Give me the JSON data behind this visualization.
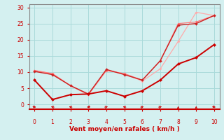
{
  "xlabel": "Vent moyen/en rafales ( km/h )",
  "x": [
    0,
    1,
    2,
    3,
    4,
    5,
    6,
    7,
    8,
    9,
    10
  ],
  "line_dark1_y": [
    7.5,
    1.5,
    3.0,
    3.2,
    4.2,
    2.5,
    4.2,
    7.5,
    12.5,
    14.5,
    18.5
  ],
  "line_dark2_y": [
    10.2,
    9.2,
    5.8,
    3.2,
    10.8,
    9.2,
    7.5,
    13.5,
    24.5,
    25.0,
    27.5
  ],
  "line_light1_y": [
    10.5,
    9.5,
    5.8,
    3.0,
    10.5,
    9.5,
    7.2,
    11.0,
    19.5,
    28.5,
    27.5
  ],
  "line_light2_y": [
    10.5,
    9.5,
    5.8,
    3.0,
    10.5,
    9.5,
    7.5,
    13.5,
    25.0,
    25.5,
    27.5
  ],
  "line_dark1_color": "#cc0000",
  "line_dark2_color": "#cc2222",
  "line_light1_color": "#ffaaaa",
  "line_light2_color": "#ff7777",
  "bg_color": "#d4f0f0",
  "grid_color": "#aadada",
  "xlabel_color": "#cc0000",
  "tick_color": "#cc0000",
  "spine_color": "#888888",
  "arrow_color": "#cc0000",
  "ylim": [
    -1.5,
    31
  ],
  "yticks": [
    0,
    5,
    10,
    15,
    20,
    25,
    30
  ],
  "xlim": [
    -0.3,
    10.3
  ],
  "xticks": [
    0,
    1,
    2,
    3,
    4,
    5,
    6,
    7,
    8,
    9,
    10
  ],
  "arrow_angles": [
    135,
    315,
    315,
    225,
    45,
    315,
    45,
    45,
    0,
    0,
    135
  ]
}
